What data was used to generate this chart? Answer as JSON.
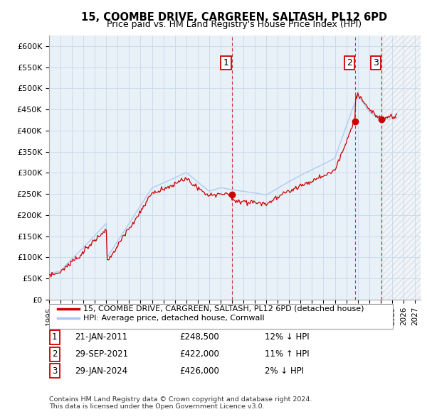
{
  "title": "15, COOMBE DRIVE, CARGREEN, SALTASH, PL12 6PD",
  "subtitle": "Price paid vs. HM Land Registry's House Price Index (HPI)",
  "hpi_label": "HPI: Average price, detached house, Cornwall",
  "property_label": "15, COOMBE DRIVE, CARGREEN, SALTASH, PL12 6PD (detached house)",
  "hpi_color": "#aac8f0",
  "property_color": "#cc0000",
  "vline_color": "#cc0000",
  "annotation_box_color": "#cc0000",
  "background_color": "#ffffff",
  "chart_bg": "#e8f0f8",
  "grid_color": "#c8d8e8",
  "hatch_color": "#c0c0c0",
  "ylim": [
    0,
    625000
  ],
  "yticks": [
    0,
    50000,
    100000,
    150000,
    200000,
    250000,
    300000,
    350000,
    400000,
    450000,
    500000,
    550000,
    600000
  ],
  "ytick_labels": [
    "£0",
    "£50K",
    "£100K",
    "£150K",
    "£200K",
    "£250K",
    "£300K",
    "£350K",
    "£400K",
    "£450K",
    "£500K",
    "£550K",
    "£600K"
  ],
  "sale_dates": [
    2010.97,
    2021.75,
    2024.08
  ],
  "sale_prices": [
    248500,
    422000,
    426000
  ],
  "sale_labels": [
    "1",
    "2",
    "3"
  ],
  "sale_info": [
    {
      "num": "1",
      "date": "21-JAN-2011",
      "price": "£248,500",
      "hpi": "12% ↓ HPI"
    },
    {
      "num": "2",
      "date": "29-SEP-2021",
      "price": "£422,000",
      "hpi": "11% ↑ HPI"
    },
    {
      "num": "3",
      "date": "29-JAN-2024",
      "price": "£426,000",
      "hpi": "2% ↓ HPI"
    }
  ],
  "footer": "Contains HM Land Registry data © Crown copyright and database right 2024.\nThis data is licensed under the Open Government Licence v3.0.",
  "xmin": 1995.0,
  "xmax": 2027.5,
  "hatch_start": 2024.17,
  "legend_fontsize": 8.5,
  "table_fontsize": 8.5
}
